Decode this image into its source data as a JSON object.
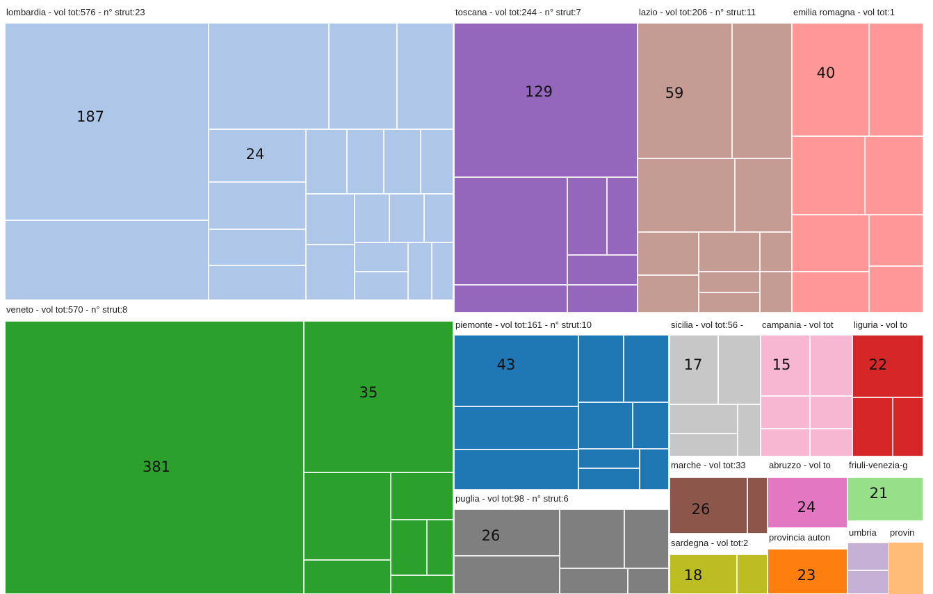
{
  "chart_data": {
    "type": "treemap",
    "groups": [
      {
        "name": "lombardia - vol tot:576 - n° strut:23",
        "color": "#aec7e8",
        "values": [
          187,
          24
        ]
      },
      {
        "name": "toscana - vol tot:244 - n° strut:7",
        "color": "#9467bd",
        "values": [
          129
        ]
      },
      {
        "name": "lazio - vol tot:206 - n° strut:11",
        "color": "#c49c94",
        "values": [
          59
        ]
      },
      {
        "name": "emilia romagna - vol tot:1",
        "color": "#ff9896",
        "values": [
          40
        ]
      },
      {
        "name": "veneto - vol tot:570 - n° strut:8",
        "color": "#2ca02c",
        "values": [
          381,
          35
        ]
      },
      {
        "name": "piemonte - vol tot:161 - n° strut:10",
        "color": "#1f77b4",
        "values": [
          43
        ]
      },
      {
        "name": "puglia - vol tot:98 - n° strut:6",
        "color": "#7f7f7f",
        "values": [
          26
        ]
      },
      {
        "name": "sicilia - vol tot:56 -",
        "color": "#c7c7c7",
        "values": [
          17
        ]
      },
      {
        "name": "campania - vol tot",
        "color": "#f7b6d2",
        "values": [
          15
        ]
      },
      {
        "name": "liguria - vol to",
        "color": "#d62728",
        "values": [
          22
        ]
      },
      {
        "name": "marche - vol tot:33",
        "color": "#8c564b",
        "values": [
          26
        ]
      },
      {
        "name": "abruzzo - vol to",
        "color": "#e377c2",
        "values": [
          24
        ]
      },
      {
        "name": "friuli-venezia-g",
        "color": "#98df8a",
        "values": [
          21
        ]
      },
      {
        "name": "sardegna - vol tot:2",
        "color": "#bcbd22",
        "values": [
          18
        ]
      },
      {
        "name": "provincia auton",
        "color": "#ff7f0e",
        "values": [
          23
        ]
      },
      {
        "name": "umbria",
        "color": "#c5b0d5",
        "values": []
      },
      {
        "name": "provin",
        "color": "#ffbb78",
        "values": []
      }
    ]
  }
}
